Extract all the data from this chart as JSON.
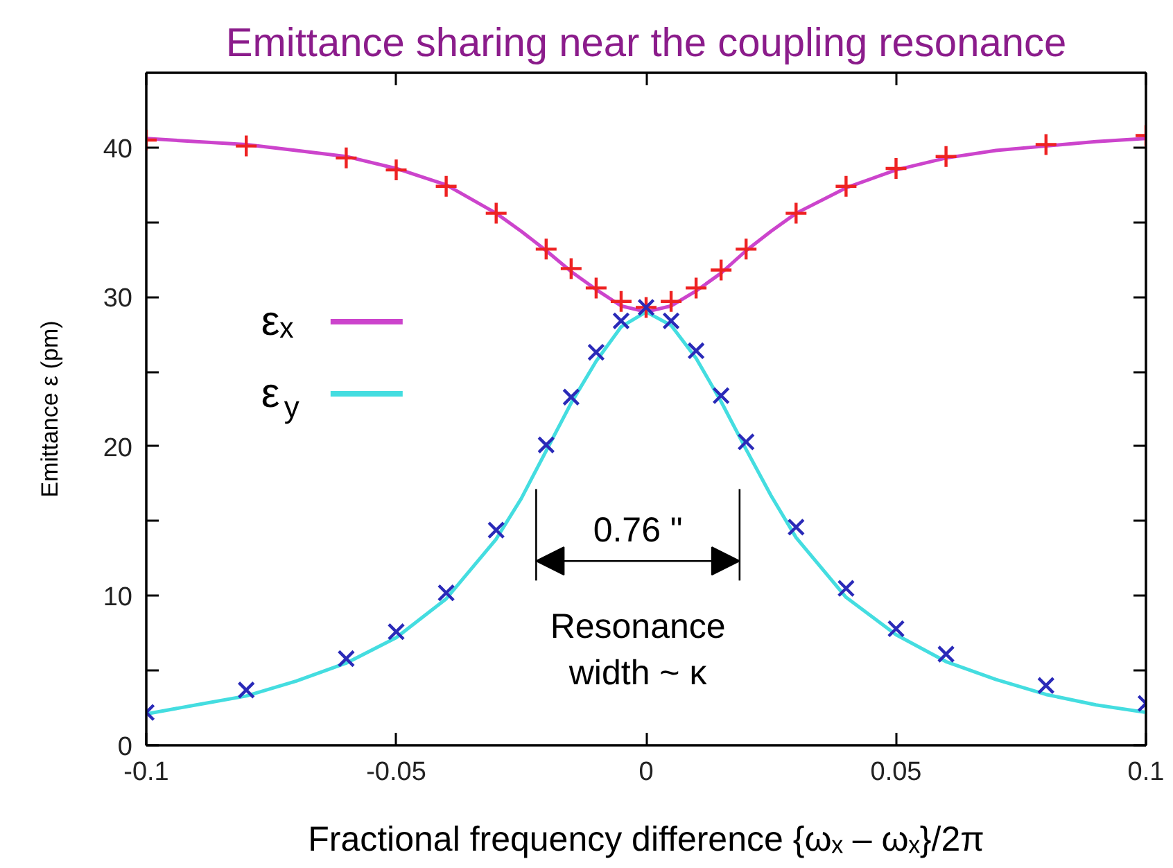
{
  "chart_data": {
    "type": "line",
    "title": "Emittance sharing near the coupling resonance",
    "xlabel": "Fractional frequency difference {ωₓ – ωₓ}/2π",
    "ylabel": "Emittance ε (pm)",
    "xlim": [
      -0.1,
      0.1
    ],
    "xticks": [
      -0.1,
      -0.05,
      0,
      0.05,
      0.1
    ],
    "ylim": [
      0,
      45
    ],
    "yticks": [
      0,
      {
        "value": 5,
        "label": null
      },
      10,
      {
        "value": 15,
        "label": null
      },
      20,
      {
        "value": 25,
        "label": null
      },
      30,
      {
        "value": 35,
        "label": null
      },
      40
    ],
    "legend": "left",
    "series": [
      {
        "name": "εₓ",
        "color": "#cc44cc",
        "x": [
          -0.1,
          -0.09,
          -0.08,
          -0.07,
          -0.06,
          -0.05,
          -0.04,
          -0.03,
          -0.025,
          -0.02,
          -0.015,
          -0.01,
          -0.005,
          0,
          0.005,
          0.01,
          0.015,
          0.02,
          0.025,
          0.03,
          0.04,
          0.05,
          0.06,
          0.07,
          0.08,
          0.09,
          0.1
        ],
        "values": [
          40.6,
          40.4,
          40.2,
          39.8,
          39.4,
          38.6,
          37.5,
          35.6,
          34.4,
          33.1,
          31.7,
          30.5,
          29.4,
          29.0,
          29.4,
          30.4,
          31.6,
          33.1,
          34.4,
          35.6,
          37.3,
          38.5,
          39.3,
          39.8,
          40.1,
          40.4,
          40.6
        ]
      },
      {
        "name": "ε$_{y}$",
        "color": "#44dde0",
        "x": [
          -0.1,
          -0.09,
          -0.08,
          -0.07,
          -0.06,
          -0.05,
          -0.04,
          -0.03,
          -0.025,
          -0.02,
          -0.015,
          -0.01,
          -0.005,
          0,
          0.005,
          0.01,
          0.015,
          0.02,
          0.025,
          0.03,
          0.04,
          0.05,
          0.06,
          0.07,
          0.08,
          0.09,
          0.1
        ],
        "values": [
          2.1,
          2.7,
          3.3,
          4.3,
          5.5,
          7.2,
          9.8,
          13.8,
          16.5,
          19.7,
          22.9,
          25.7,
          28.0,
          29.0,
          28.1,
          25.9,
          23.0,
          19.8,
          16.7,
          13.9,
          9.9,
          7.4,
          5.6,
          4.4,
          3.4,
          2.7,
          2.2
        ]
      },
      {
        "type": "scatter",
        "marker": "cross",
        "color": "#ee2222",
        "x": [
          -0.1,
          -0.08,
          -0.06,
          -0.05,
          -0.04,
          -0.03,
          -0.02,
          -0.015,
          -0.01,
          -0.005,
          0,
          0.005,
          0.01,
          0.015,
          0.02,
          0.03,
          0.04,
          0.05,
          0.06,
          0.08,
          0.1
        ],
        "values": [
          40.5,
          40.1,
          39.3,
          38.5,
          37.4,
          35.6,
          33.2,
          31.9,
          30.6,
          29.7,
          29.3,
          29.7,
          30.6,
          31.8,
          33.2,
          35.6,
          37.4,
          38.6,
          39.4,
          40.2,
          40.8
        ]
      },
      {
        "type": "scatter",
        "marker": "x",
        "color": "#2a2ab8",
        "x": [
          -0.1,
          -0.08,
          -0.06,
          -0.05,
          -0.04,
          -0.03,
          -0.02,
          -0.015,
          -0.01,
          -0.005,
          0,
          0.005,
          0.01,
          0.015,
          0.02,
          0.03,
          0.04,
          0.05,
          0.06,
          0.08,
          0.1
        ],
        "values": [
          2.2,
          3.7,
          5.8,
          7.6,
          10.2,
          14.4,
          20.1,
          23.3,
          26.3,
          28.4,
          29.3,
          28.4,
          26.4,
          23.4,
          20.3,
          14.6,
          10.5,
          7.8,
          6.1,
          4.0,
          2.8
        ]
      }
    ],
    "ref_lines": [
      {
        "axis": "x",
        "value": -0.022,
        "color": "#000000"
      },
      {
        "axis": "x",
        "value": 0.0187,
        "color": "#000000"
      }
    ],
    "annotations": [
      "0.76 \"",
      "Resonance\nwidth ~ κ"
    ]
  }
}
